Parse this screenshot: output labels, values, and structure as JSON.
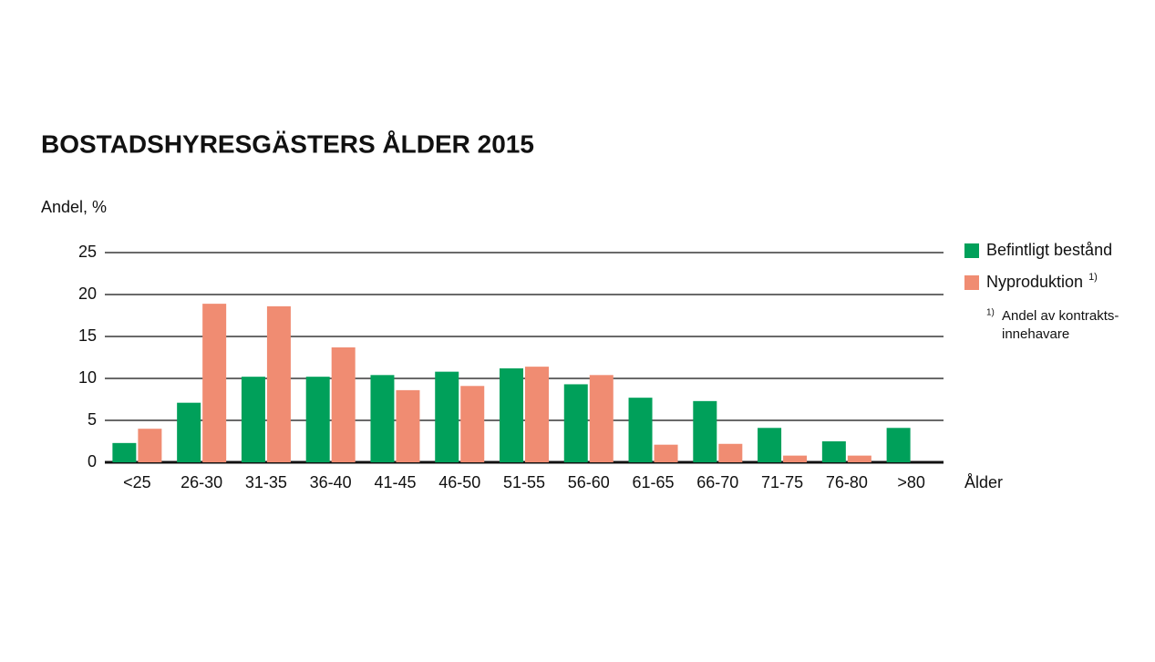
{
  "chart_data": {
    "type": "bar",
    "title": "BOSTADSHYRESGÄSTERS ÅLDER 2015",
    "y_label": "Andel, %",
    "x_label": "Ålder",
    "categories": [
      "<25",
      "26-30",
      "31-35",
      "36-40",
      "41-45",
      "46-50",
      "51-55",
      "56-60",
      "61-65",
      "66-70",
      "71-75",
      "76-80",
      ">80"
    ],
    "series": [
      {
        "name": "Befintligt bestånd",
        "color": "#00a05a",
        "values": [
          2.3,
          7.1,
          10.2,
          10.2,
          10.4,
          10.8,
          11.2,
          9.3,
          7.7,
          7.3,
          4.1,
          2.5,
          4.1
        ]
      },
      {
        "name": "Nyproduktion",
        "legend_note": "1)",
        "color": "#f08c72",
        "values": [
          4.0,
          18.9,
          18.6,
          13.7,
          8.6,
          9.1,
          11.4,
          10.4,
          2.1,
          2.2,
          0.8,
          0.8,
          null
        ]
      }
    ],
    "footnote": {
      "marker": "1)",
      "lines": [
        "Andel av kontrakts-",
        "innehavare"
      ]
    },
    "ylim": [
      0,
      25
    ],
    "yticks": [
      0,
      5,
      10,
      15,
      20,
      25
    ],
    "grid": true
  }
}
